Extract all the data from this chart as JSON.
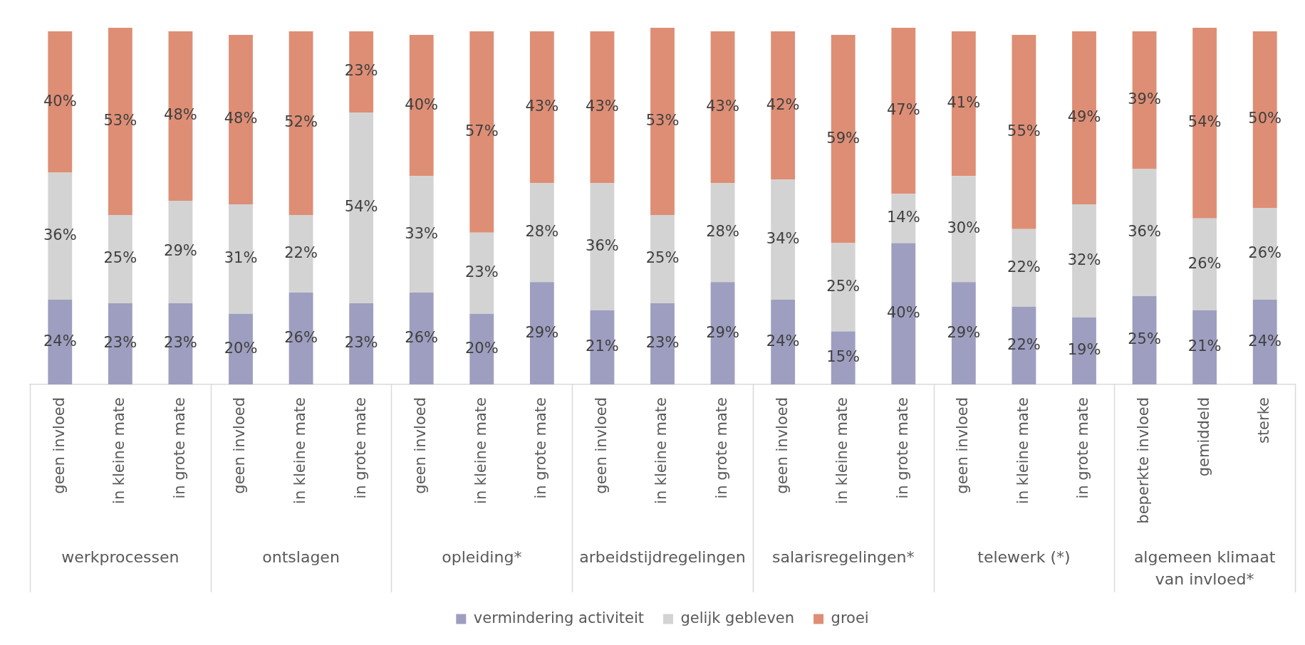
{
  "chart_data": {
    "type": "bar",
    "stacked": true,
    "legend": "bottom",
    "categories": [
      "geen invloed",
      "in kleine mate",
      "in grote mate",
      "geen invloed",
      "in kleine mate",
      "in grote mate",
      "geen invloed",
      "in kleine mate",
      "in grote mate",
      "geen invloed",
      "in kleine mate",
      "in grote mate",
      "geen invloed",
      "in kleine mate",
      "in grote mate",
      "geen invloed",
      "in kleine mate",
      "in grote mate",
      "beperkte invloed",
      "gemiddeld",
      "sterke"
    ],
    "annotations": [
      "werkprocessen",
      "ontslagen",
      "opleiding*",
      "arbeidstijdregelingen",
      "salarisregelingen*",
      "telewerk (*)",
      "algemeen klimaat van invloed*"
    ],
    "series": [
      {
        "name": "vermindering activiteit",
        "color": "#9e9ec0",
        "values": [
          24,
          23,
          23,
          20,
          26,
          23,
          26,
          20,
          29,
          21,
          23,
          29,
          24,
          15,
          40,
          29,
          22,
          19,
          25,
          21,
          24
        ],
        "value_labels": [
          "24%",
          "23%",
          "23%",
          "20%",
          "26%",
          "23%",
          "26%",
          "20%",
          "29%",
          "21%",
          "23%",
          "29%",
          "24%",
          "15%",
          "40%",
          "29%",
          "22%",
          "19%",
          "25%",
          "21%",
          "24%"
        ]
      },
      {
        "name": "gelijk gebleven",
        "color": "#d3d3d3",
        "values": [
          36,
          25,
          29,
          31,
          22,
          54,
          33,
          23,
          28,
          36,
          25,
          28,
          34,
          25,
          14,
          30,
          22,
          32,
          36,
          26,
          26
        ],
        "value_labels": [
          "36%",
          "25%",
          "29%",
          "31%",
          "22%",
          "54%",
          "33%",
          "23%",
          "28%",
          "36%",
          "25%",
          "28%",
          "34%",
          "25%",
          "14%",
          "30%",
          "22%",
          "32%",
          "36%",
          "26%",
          "26%"
        ]
      },
      {
        "name": "groei",
        "color": "#de8e75",
        "values": [
          40,
          53,
          48,
          48,
          52,
          23,
          40,
          57,
          43,
          43,
          53,
          43,
          42,
          59,
          47,
          41,
          55,
          49,
          39,
          54,
          50
        ],
        "value_labels": [
          "40%",
          "53%",
          "48%",
          "48%",
          "52%",
          "23%",
          "40%",
          "57%",
          "43%",
          "43%",
          "53%",
          "43%",
          "42%",
          "59%",
          "47%",
          "41%",
          "55%",
          "49%",
          "39%",
          "54%",
          "50%"
        ]
      }
    ]
  }
}
